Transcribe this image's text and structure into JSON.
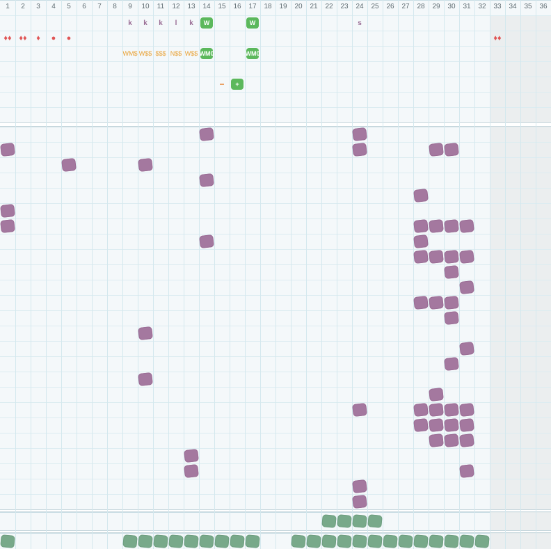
{
  "board": {
    "columns": [
      "1",
      "2",
      "3",
      "4",
      "5",
      "6",
      "7",
      "8",
      "9",
      "10",
      "11",
      "12",
      "13",
      "14",
      "15",
      "16",
      "17",
      "18",
      "19",
      "20",
      "21",
      "22",
      "23",
      "24",
      "25",
      "26",
      "27",
      "28",
      "29",
      "30",
      "31",
      "32",
      "33",
      "34",
      "35",
      "36"
    ],
    "header_letters": [
      {
        "col": 9,
        "text": "k"
      },
      {
        "col": 10,
        "text": "k"
      },
      {
        "col": 11,
        "text": "k"
      },
      {
        "col": 12,
        "text": "l"
      },
      {
        "col": 13,
        "text": "k"
      },
      {
        "col": 24,
        "text": "s"
      }
    ],
    "header_badges": [
      {
        "col": 14,
        "row": 0,
        "text": "W"
      },
      {
        "col": 17,
        "row": 0,
        "text": "W"
      },
      {
        "col": 14,
        "row": 2,
        "text": "WM0"
      },
      {
        "col": 17,
        "row": 2,
        "text": "WM0"
      },
      {
        "col": 16,
        "row": 4,
        "text": "+"
      }
    ],
    "red_marks": [
      {
        "col": 1,
        "text": "♦♦"
      },
      {
        "col": 2,
        "text": "♦♦"
      },
      {
        "col": 3,
        "text": "♦"
      },
      {
        "col": 4,
        "text": "●"
      },
      {
        "col": 5,
        "text": "●"
      },
      {
        "col": 33,
        "text": "♦♦"
      }
    ],
    "orange_marks": [
      {
        "col": 9,
        "text": "WM$"
      },
      {
        "col": 10,
        "text": "W$$"
      },
      {
        "col": 11,
        "text": "$$$"
      },
      {
        "col": 12,
        "text": "N$$"
      },
      {
        "col": 13,
        "text": "W$$"
      }
    ],
    "minus_mark": {
      "col": 15,
      "text": "−"
    },
    "purple_cells": [
      [
        14,
        0
      ],
      [
        24,
        0
      ],
      [
        1,
        1
      ],
      [
        24,
        1
      ],
      [
        29,
        1
      ],
      [
        30,
        1
      ],
      [
        5,
        2
      ],
      [
        10,
        2
      ],
      [
        14,
        3
      ],
      [
        28,
        4
      ],
      [
        1,
        5
      ],
      [
        1,
        6
      ],
      [
        28,
        6
      ],
      [
        29,
        6
      ],
      [
        30,
        6
      ],
      [
        31,
        6
      ],
      [
        14,
        7
      ],
      [
        28,
        7
      ],
      [
        28,
        8
      ],
      [
        29,
        8
      ],
      [
        30,
        8
      ],
      [
        31,
        8
      ],
      [
        30,
        9
      ],
      [
        31,
        10
      ],
      [
        28,
        11
      ],
      [
        29,
        11
      ],
      [
        30,
        11
      ],
      [
        30,
        12
      ],
      [
        10,
        13
      ],
      [
        31,
        14
      ],
      [
        30,
        15
      ],
      [
        10,
        16
      ],
      [
        29,
        17
      ],
      [
        24,
        18
      ],
      [
        28,
        18
      ],
      [
        29,
        18
      ],
      [
        30,
        18
      ],
      [
        31,
        18
      ],
      [
        28,
        19
      ],
      [
        29,
        19
      ],
      [
        30,
        19
      ],
      [
        31,
        19
      ],
      [
        29,
        20
      ],
      [
        30,
        20
      ],
      [
        31,
        20
      ],
      [
        13,
        21
      ],
      [
        13,
        22
      ],
      [
        31,
        22
      ],
      [
        24,
        23
      ],
      [
        24,
        24
      ]
    ],
    "teal_row_a": [
      22,
      23,
      24,
      25
    ],
    "teal_row_b": [
      1,
      9,
      10,
      11,
      12,
      13,
      14,
      15,
      16,
      17,
      20,
      21,
      22,
      23,
      24,
      25,
      26,
      27,
      28,
      29,
      30,
      31,
      32
    ]
  }
}
